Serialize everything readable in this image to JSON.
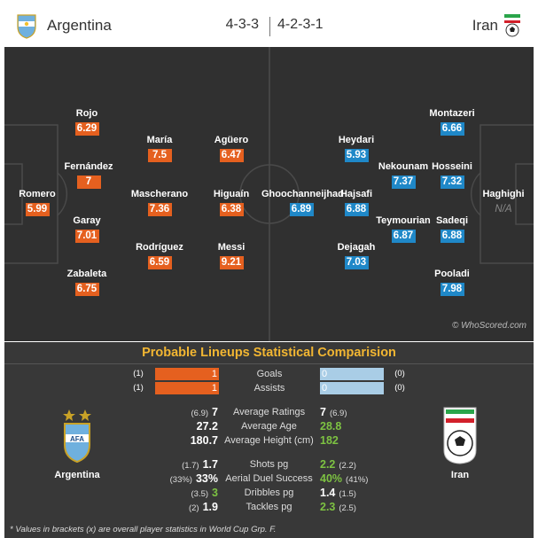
{
  "header": {
    "home_team": "Argentina",
    "away_team": "Iran",
    "home_formation": "4-3-3",
    "away_formation": "4-2-3-1"
  },
  "pitch": {
    "watermark": "© WhoScored.com",
    "home_players": [
      {
        "name": "Romero",
        "rating": "5.99"
      },
      {
        "name": "Rojo",
        "rating": "6.29"
      },
      {
        "name": "Fernández",
        "rating": "7"
      },
      {
        "name": "Garay",
        "rating": "7.01"
      },
      {
        "name": "Zabaleta",
        "rating": "6.75"
      },
      {
        "name": "María",
        "rating": "7.5"
      },
      {
        "name": "Mascherano",
        "rating": "7.36"
      },
      {
        "name": "Rodríguez",
        "rating": "6.59"
      },
      {
        "name": "Agüero",
        "rating": "6.47"
      },
      {
        "name": "Higuaín",
        "rating": "6.38"
      },
      {
        "name": "Messi",
        "rating": "9.21"
      }
    ],
    "away_players": [
      {
        "name": "Haghighi",
        "rating": "N/A"
      },
      {
        "name": "Montazeri",
        "rating": "6.66"
      },
      {
        "name": "Hosseini",
        "rating": "7.32"
      },
      {
        "name": "Sadeqi",
        "rating": "6.88"
      },
      {
        "name": "Pooladi",
        "rating": "7.98"
      },
      {
        "name": "Nekounam",
        "rating": "7.37"
      },
      {
        "name": "Teymourian",
        "rating": "6.87"
      },
      {
        "name": "Heydari",
        "rating": "5.93"
      },
      {
        "name": "Hajsafi",
        "rating": "6.88"
      },
      {
        "name": "Dejagah",
        "rating": "7.03"
      },
      {
        "name": "Ghoochanneijhad",
        "rating": "6.89"
      }
    ]
  },
  "comparison": {
    "title": "Probable Lineups Statistical Comparision",
    "bar_stats": [
      {
        "label": "Goals",
        "home_value": "1",
        "home_overall": "(1)",
        "away_value": "0",
        "away_overall": "(0)"
      },
      {
        "label": "Assists",
        "home_value": "1",
        "home_overall": "(1)",
        "away_value": "0",
        "away_overall": "(0)"
      }
    ],
    "stats": [
      {
        "label": "Average Ratings",
        "home_value": "7",
        "home_overall": "(6.9)",
        "away_value": "7",
        "away_overall": "(6.9)"
      },
      {
        "label": "Average Age",
        "home_value": "27.2",
        "home_overall": "",
        "away_value": "28.8",
        "away_overall": ""
      },
      {
        "label": "Average Height (cm)",
        "home_value": "180.7",
        "home_overall": "",
        "away_value": "182",
        "away_overall": ""
      },
      {
        "label": "Shots pg",
        "home_value": "1.7",
        "home_overall": "(1.7)",
        "away_value": "2.2",
        "away_overall": "(2.2)"
      },
      {
        "label": "Aerial Duel Success",
        "home_value": "33%",
        "home_overall": "(33%)",
        "away_value": "40%",
        "away_overall": "(41%)"
      },
      {
        "label": "Dribbles pg",
        "home_value": "3",
        "home_overall": "(3.5)",
        "away_value": "1.4",
        "away_overall": "(1.5)"
      },
      {
        "label": "Tackles pg",
        "home_value": "1.9",
        "home_overall": "(2)",
        "away_value": "2.3",
        "away_overall": "(2.5)"
      }
    ],
    "home_label": "Argentina",
    "away_label": "Iran",
    "footnote": "* Values in brackets (x) are overall player statistics in World Cup Grp. F."
  },
  "colors": {
    "home_rating": "#e5601f",
    "away_rating": "#1f88c8",
    "title": "#f2b632",
    "better_value": "#7dc242"
  }
}
